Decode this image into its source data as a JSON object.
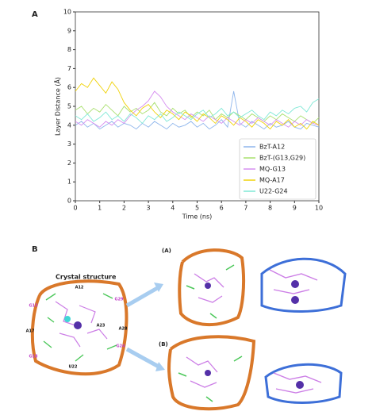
{
  "chart_data": {
    "type": "line",
    "panel_label": "A",
    "xlabel": "Time (ns)",
    "ylabel": "Layer Distance (Å)",
    "x": [
      0,
      0.25,
      0.5,
      0.75,
      1,
      1.25,
      1.5,
      1.75,
      2,
      2.25,
      2.5,
      2.75,
      3,
      3.25,
      3.5,
      3.75,
      4,
      4.25,
      4.5,
      4.75,
      5,
      5.25,
      5.5,
      5.75,
      6,
      6.25,
      6.5,
      6.75,
      7,
      7.25,
      7.5,
      7.75,
      8,
      8.25,
      8.5,
      8.75,
      9,
      9.25,
      9.5,
      9.75,
      10
    ],
    "series": [
      {
        "name": "BzT-A12",
        "color": "#8fb6ec",
        "values": [
          4.0,
          4.2,
          3.9,
          4.1,
          3.8,
          4.0,
          4.2,
          3.9,
          4.1,
          4.0,
          3.8,
          4.1,
          3.9,
          4.2,
          4.0,
          3.8,
          4.1,
          3.9,
          4.0,
          4.2,
          3.9,
          4.1,
          3.8,
          4.0,
          4.3,
          3.9,
          5.8,
          4.1,
          3.9,
          4.2,
          4.0,
          3.8,
          4.1,
          3.9,
          4.0,
          4.2,
          3.9,
          3.8,
          4.1,
          4.0,
          3.9
        ]
      },
      {
        "name": "BzT-(G13,G29)",
        "color": "#a9e06e",
        "values": [
          4.8,
          5.0,
          4.6,
          4.9,
          4.7,
          5.1,
          4.8,
          4.5,
          5.0,
          4.7,
          4.9,
          4.6,
          4.8,
          5.2,
          4.7,
          4.5,
          4.9,
          4.6,
          4.8,
          4.4,
          4.7,
          4.5,
          4.8,
          4.3,
          4.6,
          4.4,
          4.7,
          4.5,
          4.3,
          4.6,
          4.4,
          4.2,
          4.5,
          4.3,
          4.6,
          4.4,
          4.2,
          4.5,
          4.3,
          4.1,
          4.4
        ]
      },
      {
        "name": "MQ-G13",
        "color": "#d68ff0",
        "values": [
          4.2,
          4.0,
          4.3,
          4.1,
          3.9,
          4.2,
          4.0,
          4.3,
          4.1,
          4.5,
          4.8,
          5.0,
          5.3,
          5.8,
          5.5,
          5.0,
          4.7,
          4.5,
          4.3,
          4.6,
          4.4,
          4.2,
          4.5,
          4.3,
          4.1,
          4.4,
          4.2,
          4.0,
          4.3,
          4.1,
          4.4,
          4.2,
          4.0,
          4.3,
          4.1,
          3.9,
          4.2,
          4.0,
          4.3,
          4.1,
          4.0
        ]
      },
      {
        "name": "MQ-A17",
        "color": "#f0d20a",
        "values": [
          5.8,
          6.2,
          6.0,
          6.5,
          6.1,
          5.7,
          6.3,
          5.9,
          5.2,
          4.8,
          4.5,
          4.9,
          5.1,
          4.7,
          4.4,
          4.8,
          4.6,
          4.3,
          4.7,
          4.5,
          4.2,
          4.6,
          4.4,
          4.1,
          4.5,
          4.3,
          4.0,
          4.4,
          4.2,
          3.9,
          4.3,
          4.1,
          3.8,
          4.2,
          4.0,
          4.3,
          3.9,
          4.1,
          3.8,
          4.2,
          4.0
        ]
      },
      {
        "name": "U22-G24",
        "color": "#7fe8d6",
        "values": [
          4.5,
          4.3,
          4.6,
          4.2,
          4.4,
          4.7,
          4.3,
          4.5,
          4.2,
          4.6,
          4.4,
          4.1,
          4.5,
          4.3,
          4.6,
          4.2,
          4.4,
          4.7,
          4.5,
          4.3,
          4.6,
          4.8,
          4.4,
          4.6,
          4.9,
          4.5,
          4.7,
          4.4,
          4.6,
          4.8,
          4.5,
          4.3,
          4.7,
          4.5,
          4.8,
          4.6,
          4.9,
          5.0,
          4.7,
          5.2,
          5.4
        ]
      }
    ],
    "xlim": [
      0,
      10
    ],
    "ylim": [
      0,
      10
    ],
    "xticks": [
      0,
      1,
      2,
      3,
      4,
      5,
      6,
      7,
      8,
      9,
      10
    ],
    "yticks": [
      0,
      1,
      2,
      3,
      4,
      5,
      6,
      7,
      8,
      9,
      10
    ],
    "legend": "lower right"
  },
  "panel_b": {
    "label": "B",
    "title": "Crystal structure",
    "view_a": "(A)",
    "view_b": "(B)",
    "residues": [
      "A12",
      "G13",
      "G29",
      "A17",
      "A23",
      "A28",
      "G24",
      "G18",
      "U22"
    ]
  }
}
